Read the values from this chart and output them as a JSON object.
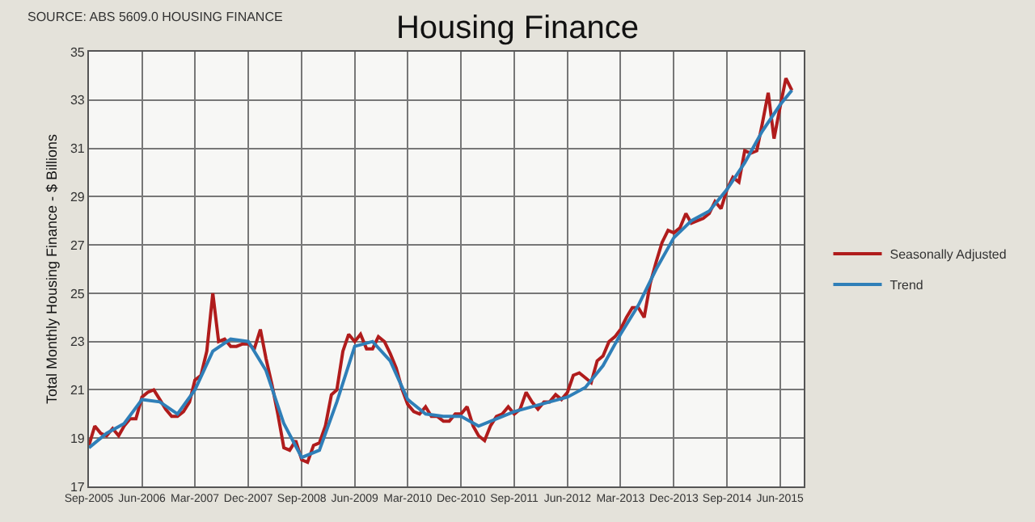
{
  "chart_data": {
    "type": "line",
    "title": "Housing Finance",
    "ylabel": "Total Monthly Housing Finance - $ Billions",
    "annotations": [
      "SOURCE: ABS 5609.0 HOUSING FINANCE"
    ],
    "x": [
      "2005-09",
      "2005-10",
      "2005-11",
      "2005-12",
      "2006-01",
      "2006-02",
      "2006-03",
      "2006-04",
      "2006-05",
      "2006-06",
      "2006-07",
      "2006-08",
      "2006-09",
      "2006-10",
      "2006-11",
      "2006-12",
      "2007-01",
      "2007-02",
      "2007-03",
      "2007-04",
      "2007-05",
      "2007-06",
      "2007-07",
      "2007-08",
      "2007-09",
      "2007-10",
      "2007-11",
      "2007-12",
      "2008-01",
      "2008-02",
      "2008-03",
      "2008-04",
      "2008-05",
      "2008-06",
      "2008-07",
      "2008-08",
      "2008-09",
      "2008-10",
      "2008-11",
      "2008-12",
      "2009-01",
      "2009-02",
      "2009-03",
      "2009-04",
      "2009-05",
      "2009-06",
      "2009-07",
      "2009-08",
      "2009-09",
      "2009-10",
      "2009-11",
      "2009-12",
      "2010-01",
      "2010-02",
      "2010-03",
      "2010-04",
      "2010-05",
      "2010-06",
      "2010-07",
      "2010-08",
      "2010-09",
      "2010-10",
      "2010-11",
      "2010-12",
      "2011-01",
      "2011-02",
      "2011-03",
      "2011-04",
      "2011-05",
      "2011-06",
      "2011-07",
      "2011-08",
      "2011-09",
      "2011-10",
      "2011-11",
      "2011-12",
      "2012-01",
      "2012-02",
      "2012-03",
      "2012-04",
      "2012-05",
      "2012-06",
      "2012-07",
      "2012-08",
      "2012-09",
      "2012-10",
      "2012-11",
      "2012-12",
      "2013-01",
      "2013-02",
      "2013-03",
      "2013-04",
      "2013-05",
      "2013-06",
      "2013-07",
      "2013-08",
      "2013-09",
      "2013-10",
      "2013-11",
      "2013-12",
      "2014-01",
      "2014-02",
      "2014-03",
      "2014-04",
      "2014-05",
      "2014-06",
      "2014-07",
      "2014-08",
      "2014-09",
      "2014-10",
      "2014-11",
      "2014-12",
      "2015-01",
      "2015-02",
      "2015-03",
      "2015-04",
      "2015-05",
      "2015-06",
      "2015-07",
      "2015-08"
    ],
    "series": [
      {
        "name": "Seasonally Adjusted",
        "color": "#b01c1c",
        "values": [
          18.7,
          19.5,
          19.2,
          19.1,
          19.4,
          19.1,
          19.5,
          19.8,
          19.8,
          20.7,
          20.9,
          21.0,
          20.6,
          20.2,
          19.9,
          19.9,
          20.1,
          20.5,
          21.4,
          21.6,
          22.6,
          25.0,
          23.0,
          23.1,
          22.8,
          22.8,
          22.9,
          22.9,
          22.7,
          23.5,
          22.3,
          21.2,
          20.0,
          18.6,
          18.5,
          18.9,
          18.1,
          18.0,
          18.7,
          18.8,
          19.5,
          20.8,
          21.0,
          22.6,
          23.3,
          23.0,
          23.3,
          22.7,
          22.7,
          23.2,
          23.0,
          22.5,
          21.9,
          21.0,
          20.4,
          20.1,
          20.0,
          20.3,
          19.9,
          19.9,
          19.7,
          19.7,
          20.0,
          20.0,
          20.3,
          19.5,
          19.1,
          18.9,
          19.5,
          19.9,
          20.0,
          20.3,
          20.0,
          20.2,
          20.9,
          20.5,
          20.2,
          20.5,
          20.5,
          20.8,
          20.6,
          20.9,
          21.6,
          21.7,
          21.5,
          21.3,
          22.2,
          22.4,
          23.0,
          23.2,
          23.5,
          24.0,
          24.4,
          24.4,
          24.0,
          25.4,
          26.3,
          27.1,
          27.6,
          27.5,
          27.7,
          28.3,
          27.9,
          28.0,
          28.1,
          28.3,
          28.8,
          28.5,
          29.3,
          29.8,
          29.6,
          30.9,
          30.8,
          30.9,
          32.0,
          33.3,
          31.4,
          32.7,
          33.9,
          33.4
        ]
      },
      {
        "name": "Trend",
        "color": "#2f7fb8",
        "x": [
          "2005-09",
          "2005-12",
          "2006-03",
          "2006-06",
          "2006-09",
          "2006-12",
          "2007-03",
          "2007-06",
          "2007-09",
          "2007-12",
          "2008-03",
          "2008-06",
          "2008-09",
          "2008-12",
          "2009-03",
          "2009-06",
          "2009-09",
          "2009-12",
          "2010-03",
          "2010-06",
          "2010-09",
          "2010-12",
          "2011-03",
          "2011-06",
          "2011-09",
          "2011-12",
          "2012-03",
          "2012-06",
          "2012-09",
          "2012-12",
          "2013-03",
          "2013-06",
          "2013-09",
          "2013-12",
          "2014-03",
          "2014-06",
          "2014-09",
          "2014-12",
          "2015-03",
          "2015-06",
          "2015-08"
        ],
        "values": [
          18.6,
          19.2,
          19.6,
          20.6,
          20.5,
          20.0,
          21.0,
          22.6,
          23.1,
          23.0,
          21.8,
          19.6,
          18.2,
          18.5,
          20.5,
          22.8,
          23.0,
          22.2,
          20.6,
          20.0,
          19.9,
          19.9,
          19.5,
          19.8,
          20.1,
          20.3,
          20.5,
          20.7,
          21.1,
          22.0,
          23.3,
          24.5,
          26.0,
          27.3,
          28.0,
          28.4,
          29.3,
          30.4,
          31.7,
          32.8,
          33.4
        ]
      }
    ],
    "xlim": [
      "2005-09",
      "2015-10"
    ],
    "xticks": [
      {
        "value": "2005-09",
        "label": "Sep-2005"
      },
      {
        "value": "2006-06",
        "label": "Jun-2006"
      },
      {
        "value": "2007-03",
        "label": "Mar-2007"
      },
      {
        "value": "2007-12",
        "label": "Dec-2007"
      },
      {
        "value": "2008-09",
        "label": "Sep-2008"
      },
      {
        "value": "2009-06",
        "label": "Jun-2009"
      },
      {
        "value": "2010-03",
        "label": "Mar-2010"
      },
      {
        "value": "2010-12",
        "label": "Dec-2010"
      },
      {
        "value": "2011-09",
        "label": "Sep-2011"
      },
      {
        "value": "2012-06",
        "label": "Jun-2012"
      },
      {
        "value": "2013-03",
        "label": "Mar-2013"
      },
      {
        "value": "2013-12",
        "label": "Dec-2013"
      },
      {
        "value": "2014-09",
        "label": "Sep-2014"
      },
      {
        "value": "2015-06",
        "label": "Jun-2015"
      }
    ],
    "ylim": [
      17,
      35
    ],
    "yticks": [
      17,
      19,
      21,
      23,
      25,
      27,
      29,
      31,
      33,
      35
    ],
    "grid": true,
    "legend": "right",
    "marker": "none",
    "line_style": "solid"
  }
}
